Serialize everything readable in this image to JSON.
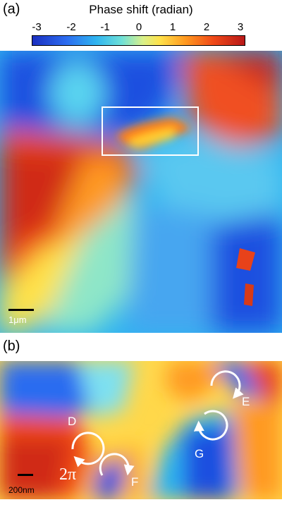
{
  "panel_a": {
    "label": "(a)",
    "colorbar": {
      "title": "Phase shift (radian)",
      "ticks": [
        "-3",
        "-2",
        "-1",
        "0",
        "1",
        "2",
        "3"
      ],
      "colors": [
        "#1a2fc0",
        "#2fb4f0",
        "#ffe24a",
        "#f04a18",
        "#b81818"
      ]
    },
    "scalebar_label": "1μm"
  },
  "panel_b": {
    "label": "(b)",
    "scalebar_label": "200nm",
    "winding_label": "2π",
    "vortices": [
      "D",
      "E",
      "F",
      "G"
    ]
  }
}
